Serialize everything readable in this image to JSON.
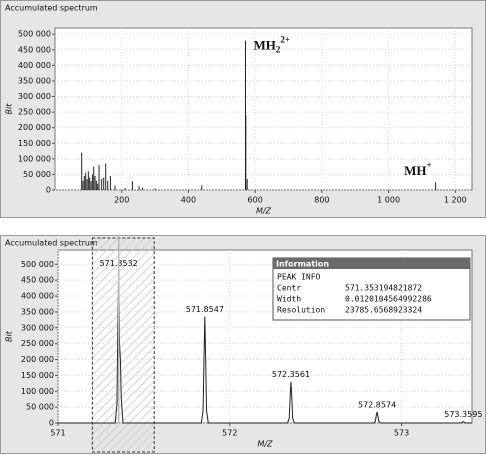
{
  "chart_data": [
    {
      "type": "stick",
      "title": "Accumulated spectrum",
      "xlabel": "M/Z",
      "ylabel": "Bit",
      "color": "#222222",
      "grid": true,
      "x": [
        80,
        84,
        88,
        92,
        96,
        100,
        104,
        108,
        112,
        116,
        120,
        124,
        128,
        132,
        140,
        146,
        152,
        158,
        166,
        180,
        210,
        232,
        252,
        262,
        300,
        440,
        571,
        572,
        576,
        1141
      ],
      "values": [
        120000,
        30000,
        45000,
        55000,
        35000,
        60000,
        40000,
        28000,
        50000,
        75000,
        45000,
        30000,
        20000,
        80000,
        35000,
        40000,
        85000,
        30000,
        45000,
        15000,
        6000,
        28000,
        12000,
        8000,
        5000,
        15000,
        480000,
        240000,
        35000,
        25000
      ],
      "xlim": [
        0,
        1250
      ],
      "xticks": [
        200,
        400,
        600,
        800,
        {
          "value": 1000,
          "label": "1 000"
        },
        {
          "value": 1200,
          "label": "1 200"
        }
      ],
      "ylim": [
        0,
        520000
      ],
      "yticks": [
        0,
        {
          "value": 50000,
          "label": "50 000"
        },
        {
          "value": 100000,
          "label": "100 000"
        },
        {
          "value": 150000,
          "label": "150 000"
        },
        {
          "value": 200000,
          "label": "200 000"
        },
        {
          "value": 250000,
          "label": "250 000"
        },
        {
          "value": 300000,
          "label": "300 000"
        },
        {
          "value": 350000,
          "label": "350 000"
        },
        {
          "value": 400000,
          "label": "400 000"
        },
        {
          "value": 450000,
          "label": "450 000"
        },
        {
          "value": 500000,
          "label": "500 000"
        }
      ],
      "annotations": [
        {
          "text": "MH",
          "sub": "2",
          "sup": "2+"
        },
        {
          "text": "MH",
          "sup": "+"
        }
      ]
    },
    {
      "type": "line",
      "title": "Accumulated spectrum",
      "xlabel": "M/Z",
      "ylabel": "Bit",
      "color": "#222222",
      "grid": true,
      "x": [
        571,
        571.3332,
        571.3432,
        571.3482,
        571.3532,
        571.3582,
        571.3632,
        571.3682,
        571.3782,
        571.8347,
        571.8447,
        571.8497,
        571.8547,
        571.8597,
        571.8647,
        571.8747,
        572.3361,
        572.3461,
        572.3511,
        572.3561,
        572.3611,
        572.3661,
        572.3761,
        572.8374,
        572.8474,
        572.8524,
        572.8574,
        572.8624,
        572.8674,
        572.8774,
        573.3395,
        573.3495,
        573.3545,
        573.3595,
        573.3645,
        573.3695,
        573.3795,
        573.41
      ],
      "values": [
        0,
        0,
        60000,
        300000,
        481000,
        250000,
        200000,
        80000,
        0,
        0,
        40000,
        200000,
        335000,
        200000,
        40000,
        0,
        0,
        15000,
        80000,
        130000,
        80000,
        15000,
        0,
        0,
        5000,
        22000,
        35000,
        22000,
        5000,
        0,
        0,
        600,
        2500,
        4000,
        2500,
        600,
        0,
        0
      ],
      "xlim": [
        571,
        573.41
      ],
      "xticks": [
        571,
        572,
        573
      ],
      "ylim": [
        0,
        545000
      ],
      "yticks": [
        0,
        {
          "value": 50000,
          "label": "50 000"
        },
        {
          "value": 100000,
          "label": "100 000"
        },
        {
          "value": 150000,
          "label": "150 000"
        },
        {
          "value": 200000,
          "label": "200 000"
        },
        {
          "value": 250000,
          "label": "250 000"
        },
        {
          "value": 300000,
          "label": "300 000"
        },
        {
          "value": 350000,
          "label": "350 000"
        },
        {
          "value": 400000,
          "label": "400 000"
        },
        {
          "value": 450000,
          "label": "450 000"
        },
        {
          "value": 500000,
          "label": "500 000"
        }
      ],
      "selection": [
        571.2,
        571.56
      ]
    }
  ],
  "info_box": {
    "title": "Information",
    "heading": "PEAK INFO",
    "rows": [
      [
        "Centr",
        571.353194821872
      ],
      [
        "Width",
        0.0120104564992286
      ],
      [
        "Resolution",
        23785.6568923324
      ]
    ]
  }
}
